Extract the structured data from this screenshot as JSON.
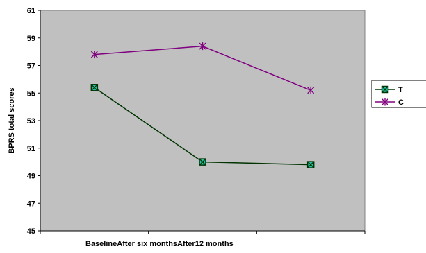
{
  "chart_data": {
    "type": "line",
    "title": "",
    "xlabel": "BaselineAfter six monthsAfter12 months",
    "ylabel": "BPRS total scores",
    "categories": [
      "Baseline",
      "After six months",
      "After12 months"
    ],
    "ylim": [
      45,
      61
    ],
    "yticks": [
      45,
      47,
      49,
      51,
      53,
      55,
      57,
      59,
      61
    ],
    "grid": false,
    "legend_position": "right",
    "plot_background": "#c0c0c0",
    "series": [
      {
        "name": "T",
        "values": [
          55.4,
          50.0,
          49.8
        ],
        "color": "#003300",
        "marker": "square-x",
        "marker_fill": "#22c1a8"
      },
      {
        "name": "C",
        "values": [
          57.8,
          58.4,
          55.2
        ],
        "color": "#800080",
        "marker": "asterisk",
        "marker_fill": "#800080"
      }
    ]
  }
}
